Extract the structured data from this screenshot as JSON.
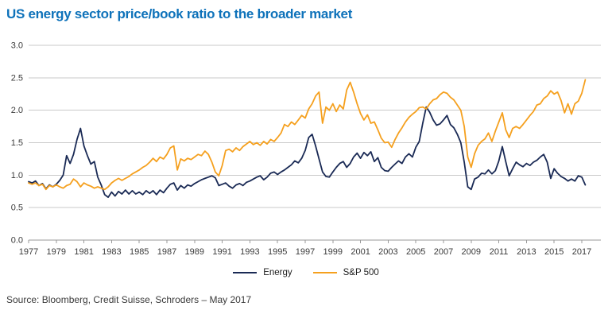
{
  "title": "US energy sector price/book ratio to the broader market",
  "source": "Source: Bloomberg, Credit Suisse, Schroders – May 2017",
  "colors": {
    "title": "#0E72BA",
    "grid": "#C9C9C9",
    "axis": "#9A9A9A",
    "tick_text": "#3A3A3A",
    "energy_line": "#1A2A55",
    "sp500_line": "#F5A01E"
  },
  "chart_data": {
    "type": "line",
    "title": "US energy sector price/book ratio to the broader market",
    "xlabel": "",
    "ylabel": "",
    "grid": "horizontal",
    "legend_position": "bottom-center",
    "ylim": [
      0.0,
      3.0
    ],
    "yticks": [
      0.0,
      0.5,
      1.0,
      1.5,
      2.0,
      2.5,
      3.0
    ],
    "ytick_labels": [
      "0.0",
      "0.5",
      "1.0",
      "1.5",
      "2.0",
      "2.5",
      "3.0"
    ],
    "xlim": [
      1977,
      2017
    ],
    "xticks": [
      1977,
      1979,
      1981,
      1983,
      1985,
      1987,
      1989,
      1991,
      1993,
      1995,
      1997,
      1999,
      2001,
      2003,
      2005,
      2007,
      2009,
      2011,
      2013,
      2015,
      2017
    ],
    "x_start": 1977.0,
    "x_step": 0.25,
    "series": [
      {
        "name": "Energy",
        "color": "#1A2A55",
        "values": [
          0.9,
          0.88,
          0.91,
          0.84,
          0.87,
          0.79,
          0.85,
          0.82,
          0.86,
          0.92,
          1.0,
          1.3,
          1.18,
          1.32,
          1.55,
          1.72,
          1.45,
          1.3,
          1.17,
          1.21,
          0.97,
          0.85,
          0.7,
          0.66,
          0.74,
          0.68,
          0.75,
          0.71,
          0.77,
          0.71,
          0.76,
          0.71,
          0.74,
          0.7,
          0.76,
          0.72,
          0.76,
          0.7,
          0.77,
          0.73,
          0.8,
          0.86,
          0.88,
          0.77,
          0.84,
          0.8,
          0.85,
          0.83,
          0.87,
          0.9,
          0.93,
          0.95,
          0.97,
          0.99,
          0.96,
          0.84,
          0.86,
          0.88,
          0.83,
          0.8,
          0.85,
          0.87,
          0.84,
          0.89,
          0.91,
          0.94,
          0.97,
          0.99,
          0.93,
          0.97,
          1.03,
          1.05,
          1.01,
          1.05,
          1.08,
          1.12,
          1.16,
          1.22,
          1.19,
          1.26,
          1.38,
          1.58,
          1.63,
          1.45,
          1.25,
          1.05,
          0.98,
          0.97,
          1.05,
          1.12,
          1.18,
          1.21,
          1.12,
          1.18,
          1.28,
          1.34,
          1.26,
          1.35,
          1.3,
          1.36,
          1.21,
          1.27,
          1.12,
          1.07,
          1.06,
          1.12,
          1.17,
          1.22,
          1.18,
          1.28,
          1.33,
          1.28,
          1.43,
          1.52,
          1.8,
          2.05,
          1.97,
          1.85,
          1.77,
          1.79,
          1.85,
          1.92,
          1.78,
          1.73,
          1.63,
          1.5,
          1.2,
          0.82,
          0.78,
          0.94,
          0.97,
          1.03,
          1.02,
          1.08,
          1.02,
          1.07,
          1.22,
          1.44,
          1.21,
          0.99,
          1.1,
          1.2,
          1.16,
          1.13,
          1.18,
          1.15,
          1.2,
          1.23,
          1.28,
          1.32,
          1.2,
          0.95,
          1.1,
          1.03,
          0.98,
          0.95,
          0.91,
          0.94,
          0.91,
          0.99,
          0.97,
          0.85
        ]
      },
      {
        "name": "S&P 500",
        "color": "#F5A01E",
        "values": [
          0.88,
          0.86,
          0.88,
          0.84,
          0.86,
          0.78,
          0.84,
          0.82,
          0.85,
          0.82,
          0.8,
          0.84,
          0.86,
          0.94,
          0.9,
          0.82,
          0.88,
          0.85,
          0.83,
          0.8,
          0.82,
          0.8,
          0.78,
          0.82,
          0.88,
          0.92,
          0.95,
          0.92,
          0.95,
          0.98,
          1.02,
          1.05,
          1.08,
          1.12,
          1.15,
          1.2,
          1.26,
          1.21,
          1.28,
          1.25,
          1.32,
          1.42,
          1.45,
          1.08,
          1.25,
          1.22,
          1.26,
          1.24,
          1.28,
          1.32,
          1.3,
          1.37,
          1.32,
          1.2,
          1.05,
          0.99,
          1.15,
          1.38,
          1.4,
          1.36,
          1.42,
          1.38,
          1.44,
          1.48,
          1.52,
          1.47,
          1.5,
          1.46,
          1.52,
          1.48,
          1.55,
          1.52,
          1.58,
          1.65,
          1.78,
          1.75,
          1.82,
          1.78,
          1.85,
          1.92,
          1.88,
          2.02,
          2.1,
          2.22,
          2.28,
          1.8,
          2.05,
          2.0,
          2.1,
          1.98,
          2.08,
          2.02,
          2.31,
          2.43,
          2.28,
          2.1,
          1.95,
          1.85,
          1.93,
          1.8,
          1.82,
          1.7,
          1.57,
          1.5,
          1.51,
          1.43,
          1.55,
          1.65,
          1.73,
          1.82,
          1.89,
          1.94,
          1.98,
          2.04,
          2.05,
          2.02,
          2.1,
          2.16,
          2.18,
          2.24,
          2.28,
          2.26,
          2.2,
          2.16,
          2.08,
          2.0,
          1.75,
          1.28,
          1.12,
          1.33,
          1.46,
          1.52,
          1.56,
          1.65,
          1.52,
          1.68,
          1.82,
          1.96,
          1.7,
          1.58,
          1.72,
          1.75,
          1.72,
          1.78,
          1.85,
          1.92,
          1.98,
          2.08,
          2.1,
          2.18,
          2.22,
          2.3,
          2.25,
          2.28,
          2.15,
          1.96,
          2.1,
          1.94,
          2.1,
          2.14,
          2.26,
          2.47
        ]
      }
    ]
  }
}
